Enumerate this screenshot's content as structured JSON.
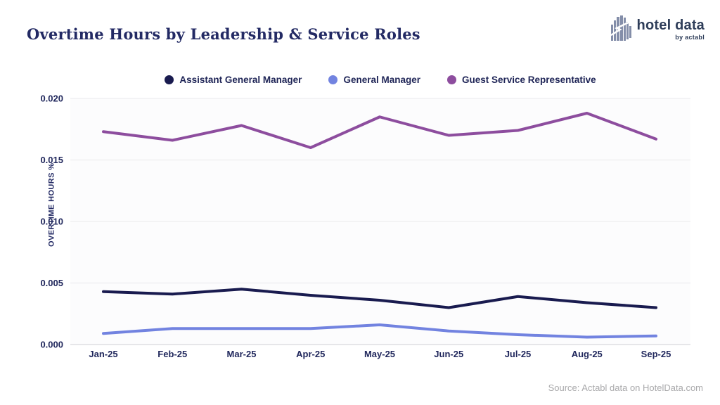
{
  "header": {
    "logo": {
      "brand": "hotel data",
      "byline": "by actabl"
    }
  },
  "chart_data": {
    "type": "line",
    "title": "Overtime Hours by Leadership & Service Roles",
    "ylabel": "OVERTIME HOURS %",
    "categories": [
      "Jan-25",
      "Feb-25",
      "Mar-25",
      "Apr-25",
      "May-25",
      "Jun-25",
      "Jul-25",
      "Aug-25",
      "Sep-25"
    ],
    "series": [
      {
        "name": "Assistant General Manager",
        "color": "#191b4f",
        "values": [
          0.0043,
          0.0041,
          0.0045,
          0.004,
          0.0036,
          0.003,
          0.0039,
          0.0034,
          0.003
        ]
      },
      {
        "name": "General Manager",
        "color": "#7283e0",
        "values": [
          0.0009,
          0.0013,
          0.0013,
          0.0013,
          0.0016,
          0.0011,
          0.0008,
          0.0006,
          0.0007
        ]
      },
      {
        "name": "Guest Service Representative",
        "color": "#8d4d9e",
        "values": [
          0.0173,
          0.0166,
          0.0178,
          0.016,
          0.0185,
          0.017,
          0.0174,
          0.0188,
          0.0167
        ]
      }
    ],
    "ylim": [
      0,
      0.02
    ],
    "yticks": [
      0.0,
      0.005,
      0.01,
      0.015,
      0.02
    ],
    "ytick_format_decimals": 3,
    "grid": "horizontal",
    "legend_position": "top"
  },
  "source_note": "Source: Actabl data on HotelData.com",
  "colors": {
    "title_text": "#232a64",
    "tick_text": "#20275c",
    "grid_line": "#ededf0",
    "axis_line": "#d8d8dd",
    "plot_background": "#fcfcfd",
    "source_text": "#a9a9ab",
    "logo_text": "#2e3d59",
    "logo_icon": "#848ea9"
  }
}
